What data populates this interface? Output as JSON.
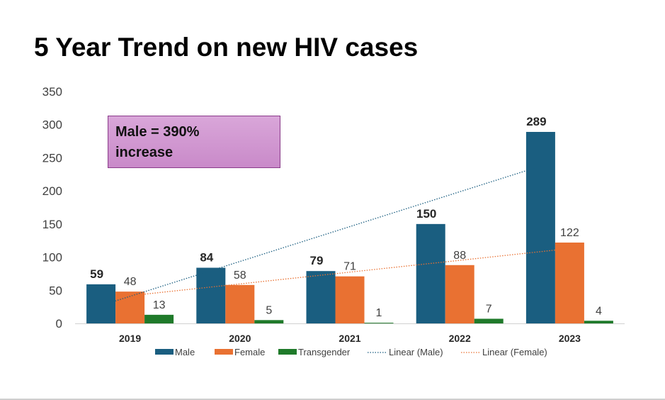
{
  "title": "5 Year Trend on new HIV cases",
  "callout": {
    "line1": "Male = 390%",
    "line2": "increase"
  },
  "colors": {
    "male": "#1a5e80",
    "female": "#e97132",
    "transgender": "#1f7a2a",
    "trend_male": "#1a5e80",
    "trend_female": "#e97132"
  },
  "chart_data": {
    "type": "bar",
    "title": "5 Year Trend on new HIV cases",
    "categories": [
      "2019",
      "2020",
      "2021",
      "2022",
      "2023"
    ],
    "series": [
      {
        "name": "Male",
        "values": [
          59,
          84,
          79,
          150,
          289
        ],
        "bold_labels": true
      },
      {
        "name": "Female",
        "values": [
          48,
          58,
          71,
          88,
          122
        ],
        "bold_labels": false
      },
      {
        "name": "Transgender",
        "values": [
          13,
          5,
          1,
          7,
          4
        ],
        "bold_labels": false
      }
    ],
    "trendlines": [
      {
        "name": "Linear (Male)",
        "series": "Male",
        "style": "dotted"
      },
      {
        "name": "Linear (Female)",
        "series": "Female",
        "style": "dotted"
      }
    ],
    "ylim": [
      0,
      350
    ],
    "yticks": [
      0,
      50,
      100,
      150,
      200,
      250,
      300,
      350
    ],
    "xlabel": "",
    "ylabel": "",
    "grid": false,
    "legend": [
      "Male",
      "Female",
      "Transgender",
      "Linear (Male)",
      "Linear (Female)"
    ],
    "legend_position": "bottom"
  }
}
